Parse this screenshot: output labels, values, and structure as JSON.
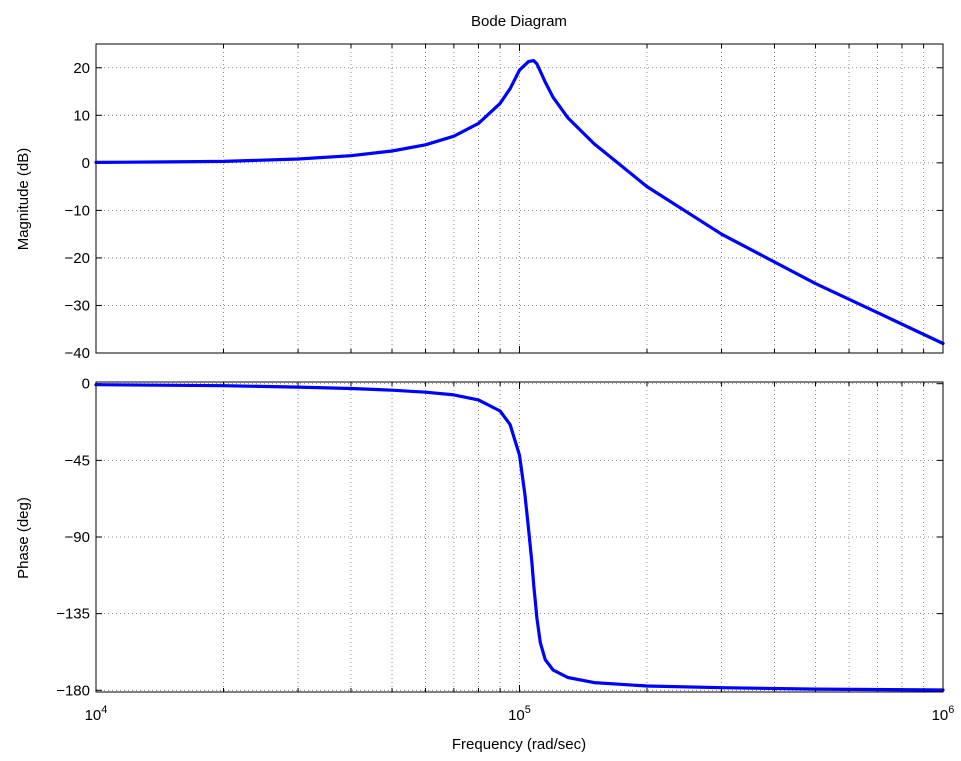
{
  "chart_data": {
    "type": "line",
    "title": "Bode Diagram",
    "xlabel": "Frequency (rad/sec)",
    "xscale": "log",
    "xlim": [
      10000,
      1000000
    ],
    "x_ticks": [
      {
        "value": 10000,
        "base": "10",
        "exp": "4"
      },
      {
        "value": 100000,
        "base": "10",
        "exp": "5"
      },
      {
        "value": 1000000,
        "base": "10",
        "exp": "6"
      }
    ],
    "grid": true,
    "line_color": "#0000ff",
    "panels": [
      {
        "id": "magnitude",
        "ylabel": "Magnitude (dB)",
        "ylim": [
          -40,
          25
        ],
        "y_ticks": [
          20,
          10,
          0,
          -10,
          -20,
          -30,
          -40
        ],
        "y_tick_labels": [
          "20",
          "10",
          "0",
          "−10",
          "−20",
          "−30",
          "−40"
        ],
        "series": [
          {
            "x": [
              10000,
              15000,
              20000,
              30000,
              40000,
              50000,
              60000,
              70000,
              80000,
              90000,
              95000,
              100000,
              105000,
              108000,
              110000,
              115000,
              120000,
              130000,
              150000,
              200000,
              300000,
              500000,
              700000,
              1000000
            ],
            "y": [
              0.1,
              0.2,
              0.3,
              0.8,
              1.5,
              2.5,
              3.8,
              5.6,
              8.3,
              12.5,
              15.6,
              19.5,
              21.3,
              21.5,
              20.8,
              17.0,
              13.8,
              9.5,
              4.0,
              -5.0,
              -15.0,
              -25.4,
              -31.5,
              -38.0
            ]
          }
        ]
      },
      {
        "id": "phase",
        "ylabel": "Phase (deg)",
        "ylim": [
          -181,
          1
        ],
        "y_ticks": [
          0,
          -45,
          -90,
          -135,
          -180
        ],
        "y_tick_labels": [
          "0",
          "−45",
          "−90",
          "−135",
          "−180"
        ],
        "series": [
          {
            "x": [
              10000,
              20000,
              30000,
              40000,
              50000,
              60000,
              70000,
              80000,
              90000,
              95000,
              100000,
              103000,
              105000,
              107000,
              108000,
              110000,
              112000,
              115000,
              120000,
              130000,
              150000,
              200000,
              300000,
              500000,
              1000000
            ],
            "y": [
              -0.6,
              -1.2,
              -2.0,
              -2.8,
              -3.8,
              -5.0,
              -6.6,
              -9.5,
              -16.0,
              -24.0,
              -42.0,
              -65.0,
              -85.0,
              -105.0,
              -118.0,
              -138.0,
              -152.0,
              -162.0,
              -168.0,
              -172.5,
              -175.5,
              -177.5,
              -178.5,
              -179.3,
              -179.8
            ]
          }
        ]
      }
    ]
  }
}
